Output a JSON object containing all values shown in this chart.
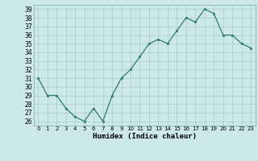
{
  "x": [
    0,
    1,
    2,
    3,
    4,
    5,
    6,
    7,
    8,
    9,
    10,
    11,
    12,
    13,
    14,
    15,
    16,
    17,
    18,
    19,
    20,
    21,
    22,
    23
  ],
  "y": [
    31,
    29,
    29,
    27.5,
    26.5,
    26,
    27.5,
    26,
    29,
    31,
    32,
    33.5,
    35,
    35.5,
    35,
    36.5,
    38,
    37.5,
    39,
    38.5,
    36,
    36,
    35,
    34.5
  ],
  "xlabel": "Humidex (Indice chaleur)",
  "xlim": [
    -0.5,
    23.5
  ],
  "ylim": [
    25.5,
    39.5
  ],
  "yticks": [
    26,
    27,
    28,
    29,
    30,
    31,
    32,
    33,
    34,
    35,
    36,
    37,
    38,
    39
  ],
  "xticks": [
    0,
    1,
    2,
    3,
    4,
    5,
    6,
    7,
    8,
    9,
    10,
    11,
    12,
    13,
    14,
    15,
    16,
    17,
    18,
    19,
    20,
    21,
    22,
    23
  ],
  "line_color": "#2e7d6e",
  "marker_color": "#2e7d6e",
  "bg_color": "#cce8e8",
  "grid_color": "#aacccc",
  "fig_bg": "#cce8e8"
}
